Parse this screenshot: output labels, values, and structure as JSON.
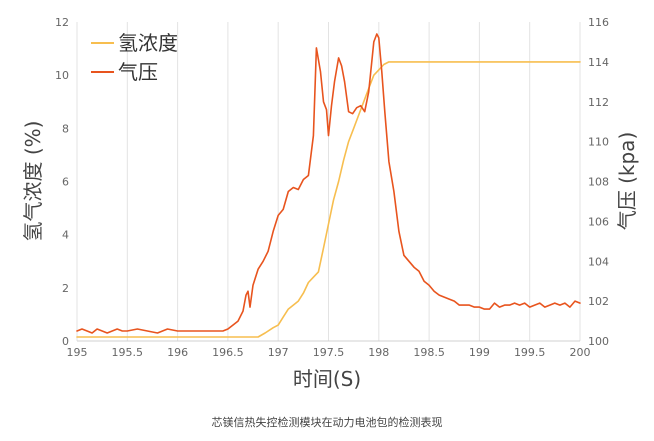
{
  "chart_data": {
    "type": "line",
    "caption": "芯镁信热失控检测模块在动力电池包的检测表现",
    "xlabel": "时间(S)",
    "ylabel_left": "氢气浓度 (%)",
    "ylabel_right": "气压 (kpa)",
    "xlim": [
      195,
      200
    ],
    "ylim_left": [
      0,
      12
    ],
    "ylim_right": [
      100,
      116
    ],
    "x_ticks": [
      "195",
      "195.5",
      "196",
      "196.5",
      "197",
      "197.5",
      "198",
      "198.5",
      "199",
      "199.5",
      "200"
    ],
    "y_left_ticks": [
      "0",
      "2",
      "4",
      "6",
      "8",
      "10",
      "12"
    ],
    "y_right_ticks": [
      "100",
      "102",
      "104",
      "106",
      "108",
      "110",
      "112",
      "114",
      "116"
    ],
    "legend_position": "top-left",
    "grid": "vertical",
    "series": [
      {
        "name": "氢浓度",
        "axis": "left",
        "color": "#F7BE4F",
        "x": [
          195,
          196.8,
          196.87,
          196.95,
          197.0,
          197.05,
          197.1,
          197.15,
          197.2,
          197.25,
          197.3,
          197.35,
          197.4,
          197.45,
          197.5,
          197.55,
          197.6,
          197.65,
          197.7,
          197.75,
          197.8,
          197.85,
          197.9,
          197.95,
          198.0,
          198.05,
          198.1,
          199.0,
          200.0
        ],
        "values": [
          0.15,
          0.15,
          0.3,
          0.5,
          0.6,
          0.9,
          1.2,
          1.35,
          1.5,
          1.8,
          2.2,
          2.4,
          2.6,
          3.5,
          4.4,
          5.3,
          6.0,
          6.8,
          7.5,
          8.0,
          8.5,
          9.0,
          9.5,
          10.0,
          10.2,
          10.4,
          10.5,
          10.5,
          10.5
        ]
      },
      {
        "name": "气压",
        "axis": "right",
        "color": "#E8541E",
        "x": [
          195.0,
          195.05,
          195.1,
          195.15,
          195.2,
          195.25,
          195.3,
          195.35,
          195.4,
          195.45,
          195.5,
          195.6,
          195.7,
          195.8,
          195.9,
          196.0,
          196.1,
          196.2,
          196.3,
          196.4,
          196.45,
          196.5,
          196.55,
          196.6,
          196.65,
          196.68,
          196.7,
          196.72,
          196.75,
          196.8,
          196.85,
          196.9,
          196.95,
          197.0,
          197.05,
          197.1,
          197.15,
          197.2,
          197.25,
          197.3,
          197.35,
          197.38,
          197.42,
          197.45,
          197.48,
          197.5,
          197.53,
          197.56,
          197.6,
          197.63,
          197.66,
          197.7,
          197.74,
          197.78,
          197.82,
          197.86,
          197.9,
          197.95,
          197.98,
          198.0,
          198.03,
          198.06,
          198.1,
          198.15,
          198.2,
          198.25,
          198.3,
          198.35,
          198.4,
          198.45,
          198.5,
          198.55,
          198.6,
          198.65,
          198.7,
          198.75,
          198.8,
          198.85,
          198.9,
          198.95,
          199.0,
          199.05,
          199.1,
          199.15,
          199.2,
          199.25,
          199.3,
          199.35,
          199.4,
          199.45,
          199.5,
          199.55,
          199.6,
          199.65,
          199.7,
          199.75,
          199.8,
          199.85,
          199.9,
          199.95,
          200.0
        ],
        "values": [
          100.5,
          100.6,
          100.5,
          100.4,
          100.6,
          100.5,
          100.4,
          100.5,
          100.6,
          100.5,
          100.5,
          100.6,
          100.5,
          100.4,
          100.6,
          100.5,
          100.5,
          100.5,
          100.5,
          100.5,
          100.5,
          100.6,
          100.8,
          101.0,
          101.5,
          102.3,
          102.5,
          101.7,
          102.8,
          103.6,
          104.0,
          104.5,
          105.5,
          106.3,
          106.6,
          107.5,
          107.7,
          107.6,
          108.1,
          108.3,
          110.3,
          114.7,
          113.5,
          112.0,
          111.6,
          110.3,
          111.8,
          113.0,
          114.2,
          113.8,
          113.0,
          111.5,
          111.4,
          111.7,
          111.8,
          111.5,
          112.5,
          115.0,
          115.4,
          115.2,
          113.5,
          111.5,
          109.0,
          107.5,
          105.5,
          104.3,
          104.0,
          103.7,
          103.5,
          103.0,
          102.8,
          102.5,
          102.3,
          102.2,
          102.1,
          102.0,
          101.8,
          101.8,
          101.8,
          101.7,
          101.7,
          101.6,
          101.6,
          101.9,
          101.7,
          101.8,
          101.8,
          101.9,
          101.8,
          101.9,
          101.7,
          101.8,
          101.9,
          101.7,
          101.8,
          101.9,
          101.8,
          101.9,
          101.7,
          102.0,
          101.9
        ]
      }
    ]
  }
}
